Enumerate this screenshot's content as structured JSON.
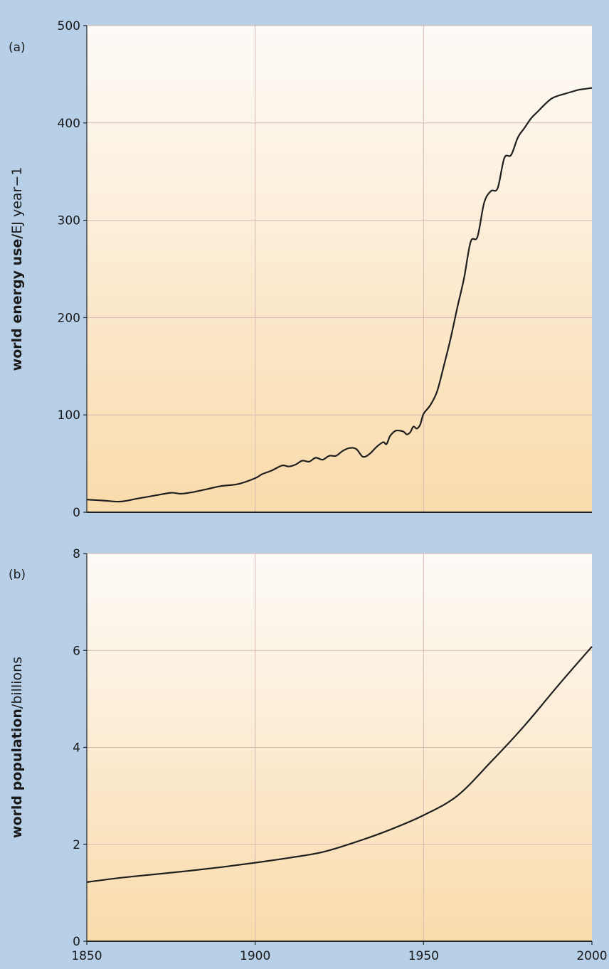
{
  "chart_data": [
    {
      "type": "line",
      "panel_label": "(a)",
      "ylabel_bold": "world energy use/",
      "ylabel_rest": "EJ year−1",
      "xlim": [
        1850,
        2000
      ],
      "ylim": [
        0,
        500
      ],
      "xticks": [
        1850,
        1900,
        1950,
        2000
      ],
      "yticks": [
        0,
        100,
        200,
        300,
        400,
        500
      ],
      "grid": true,
      "colors": {
        "plot_top": "#fdfbf8",
        "plot_bottom": "#fadbab",
        "line": "#1f1f1f",
        "grid": "#d7b9b3"
      },
      "x": [
        1850,
        1855,
        1860,
        1865,
        1870,
        1875,
        1878,
        1882,
        1886,
        1890,
        1895,
        1900,
        1902,
        1905,
        1908,
        1910,
        1912,
        1914,
        1916,
        1918,
        1920,
        1922,
        1924,
        1926,
        1928,
        1930,
        1932,
        1934,
        1936,
        1938,
        1939,
        1940,
        1941,
        1942,
        1944,
        1945,
        1946,
        1947,
        1948,
        1949,
        1950,
        1952,
        1954,
        1956,
        1958,
        1960,
        1962,
        1964,
        1966,
        1968,
        1970,
        1972,
        1974,
        1976,
        1978,
        1980,
        1982,
        1984,
        1986,
        1988,
        1990,
        1992,
        1994,
        1996,
        1998,
        2000
      ],
      "y": [
        13,
        12,
        11,
        14,
        17,
        20,
        19,
        21,
        24,
        27,
        29,
        35,
        39,
        43,
        48,
        47,
        49,
        53,
        52,
        56,
        54,
        58,
        58,
        63,
        66,
        65,
        57,
        60,
        67,
        72,
        70,
        78,
        82,
        84,
        83,
        80,
        82,
        88,
        86,
        90,
        101,
        110,
        124,
        150,
        178,
        210,
        240,
        278,
        283,
        318,
        330,
        333,
        364,
        367,
        385,
        395,
        405,
        412,
        419,
        425,
        428,
        430,
        432,
        434,
        435,
        436
      ]
    },
    {
      "type": "line",
      "panel_label": "(b)",
      "ylabel_bold": "world population",
      "ylabel_rest": "/billions",
      "xlim": [
        1850,
        2000
      ],
      "ylim": [
        0,
        8
      ],
      "xticks": [
        1850,
        1900,
        1950,
        2000
      ],
      "yticks": [
        0,
        2,
        4,
        6,
        8
      ],
      "grid": true,
      "colors": {
        "plot_top": "#fdfbf8",
        "plot_bottom": "#fadbab",
        "line": "#1f1f1f",
        "grid": "#d7b9b3"
      },
      "x": [
        1850,
        1860,
        1870,
        1880,
        1890,
        1900,
        1910,
        1920,
        1930,
        1940,
        1950,
        1960,
        1970,
        1980,
        1990,
        2000
      ],
      "y": [
        1.22,
        1.31,
        1.38,
        1.45,
        1.53,
        1.62,
        1.72,
        1.84,
        2.05,
        2.3,
        2.6,
        3.0,
        3.7,
        4.45,
        5.28,
        6.08
      ]
    }
  ]
}
